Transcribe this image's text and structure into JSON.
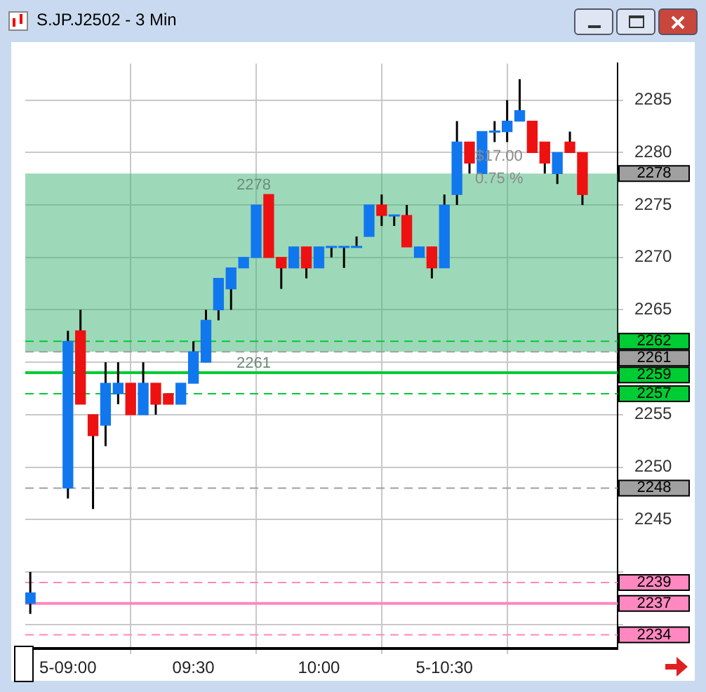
{
  "chart_data": {
    "type": "candlestick",
    "title": "S.JP.J2502 - 3 Min",
    "x": [
      8.85,
      9,
      9.05,
      9.1,
      9.15,
      9.2,
      9.25,
      9.3,
      9.35,
      9.4,
      9.45,
      9.5,
      9.55,
      9.6,
      9.65,
      9.7,
      9.75,
      9.8,
      9.85,
      9.9,
      9.95,
      10,
      10.05,
      10.1,
      10.15,
      10.2,
      10.25,
      10.3,
      10.35,
      10.4,
      10.45,
      10.5,
      10.55,
      10.6,
      10.65,
      10.7,
      10.75,
      10.8,
      10.85,
      10.9,
      10.95,
      11,
      11.05
    ],
    "ohlc": [
      [
        2237,
        2240,
        2236,
        2238
      ],
      [
        2248,
        2263,
        2247,
        2262
      ],
      [
        2263,
        2265,
        2256,
        2256
      ],
      [
        2255,
        2255,
        2246,
        2253
      ],
      [
        2254,
        2260,
        2252,
        2258
      ],
      [
        2257,
        2260,
        2256,
        2258
      ],
      [
        2258,
        2258,
        2255,
        2255
      ],
      [
        2255,
        2260,
        2255,
        2258
      ],
      [
        2258,
        2258,
        2255,
        2256
      ],
      [
        2257,
        2257,
        2256,
        2256
      ],
      [
        2256,
        2258,
        2256,
        2258
      ],
      [
        2258,
        2262,
        2258,
        2261
      ],
      [
        2260,
        2265,
        2260,
        2264
      ],
      [
        2265,
        2268,
        2264,
        2268
      ],
      [
        2267,
        2269,
        2265,
        2269
      ],
      [
        2269,
        2270,
        2269,
        2270
      ],
      [
        2270,
        2275,
        2270,
        2275
      ],
      [
        2276,
        2276,
        2270,
        2270
      ],
      [
        2270,
        2270,
        2267,
        2269
      ],
      [
        2269,
        2271,
        2269,
        2271
      ],
      [
        2271,
        2271,
        2268,
        2269
      ],
      [
        2269,
        2271,
        2269,
        2271
      ],
      [
        2271,
        2271,
        2270,
        2271
      ],
      [
        2271,
        2271,
        2269,
        2271
      ],
      [
        2271,
        2272,
        2271,
        2271
      ],
      [
        2272,
        2275,
        2272,
        2275
      ],
      [
        2275,
        2276,
        2273,
        2274
      ],
      [
        2274,
        2274,
        2273,
        2274
      ],
      [
        2274,
        2275,
        2271,
        2271
      ],
      [
        2270,
        2271,
        2270,
        2271
      ],
      [
        2271,
        2271,
        2268,
        2269
      ],
      [
        2269,
        2276,
        2269,
        2275
      ],
      [
        2276,
        2283,
        2275,
        2281
      ],
      [
        2281,
        2281,
        2278,
        2279
      ],
      [
        2278,
        2282,
        2278,
        2282
      ],
      [
        2282,
        2283,
        2281,
        2282
      ],
      [
        2282,
        2285,
        2281,
        2283
      ],
      [
        2283,
        2287,
        2283,
        2284
      ],
      [
        2283,
        2283,
        2280,
        2280
      ],
      [
        2281,
        2281,
        2278,
        2279
      ],
      [
        2278,
        2280,
        2277,
        2280
      ],
      [
        2281,
        2282,
        2280,
        2280
      ],
      [
        2280,
        2280,
        2275,
        2276
      ]
    ],
    "colors": [
      "#1177ee",
      "#1177ee",
      "#ee1111",
      "#ee1111",
      "#1177ee",
      "#1177ee",
      "#ee1111",
      "#1177ee",
      "#ee1111",
      "#ee1111",
      "#1177ee",
      "#1177ee",
      "#1177ee",
      "#1177ee",
      "#1177ee",
      "#1177ee",
      "#1177ee",
      "#ee1111",
      "#ee1111",
      "#1177ee",
      "#ee1111",
      "#1177ee",
      "#1177ee",
      "#1177ee",
      "#1177ee",
      "#1177ee",
      "#ee1111",
      "#1177ee",
      "#ee1111",
      "#1177ee",
      "#ee1111",
      "#1177ee",
      "#1177ee",
      "#ee1111",
      "#1177ee",
      "#1177ee",
      "#1177ee",
      "#1177ee",
      "#ee1111",
      "#ee1111",
      "#1177ee",
      "#ee1111",
      "#ee1111"
    ],
    "xlim": [
      8.83,
      11.19
    ],
    "xticks": [
      {
        "value": 9,
        "label": "5-09:00"
      },
      {
        "value": 9.5,
        "label": "09:30"
      },
      {
        "value": 10,
        "label": "10:00"
      },
      {
        "value": 10.5,
        "label": "5-10:30"
      }
    ],
    "ylim": [
      2232.7,
      2288.5
    ],
    "yticks": [
      {
        "value": 2235,
        "label": null
      },
      {
        "value": 2240,
        "label": null
      },
      2245,
      2250,
      2255,
      {
        "value": 2260,
        "label": null
      },
      2265,
      2270,
      2275,
      2280,
      2285
    ],
    "grid": true,
    "legend": false,
    "bands": [
      {
        "axis": "y",
        "from": 2261,
        "to": 2278,
        "label": "2278",
        "color": "#3cb371"
      }
    ],
    "ref_lines": [
      {
        "axis": "y",
        "value": 2262,
        "label": "2262",
        "color": "#00cc33",
        "line_style": "dashed"
      },
      {
        "axis": "y",
        "value": 2261,
        "label": "2261",
        "color": "#a0a0a0",
        "line_style": "dashed"
      },
      {
        "axis": "y",
        "value": 2259,
        "label": "2259",
        "color": "#00cc33",
        "line_style": "solid"
      },
      {
        "axis": "y",
        "value": 2257,
        "label": "2257",
        "color": "#00cc33",
        "line_style": "dashed"
      },
      {
        "axis": "y",
        "value": 2248,
        "label": "2248",
        "color": "#a0a0a0",
        "line_style": "dashed"
      },
      {
        "axis": "y",
        "value": 2239,
        "label": "2239",
        "color": "#ff88c0",
        "line_style": "dashed"
      },
      {
        "axis": "y",
        "value": 2237,
        "label": "2237",
        "color": "#ff88c0",
        "line_style": "solid"
      },
      {
        "axis": "y",
        "value": 2234,
        "label": "2234",
        "color": "#ff88c0",
        "line_style": "dashed"
      }
    ],
    "annotations": [
      {
        "text": "2278",
        "x": 9.74,
        "y": 2278
      },
      {
        "text": "2261",
        "x": 9.74,
        "y": 2261
      },
      "$17.00",
      "0.75 %"
    ]
  }
}
